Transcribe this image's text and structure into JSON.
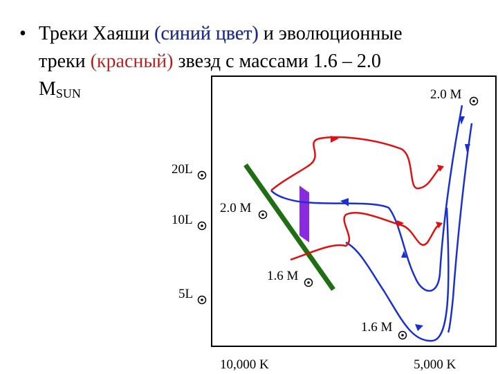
{
  "bullet": {
    "symbol": "•",
    "line1": [
      "Треки Хаяши ",
      "(синий цвет)",
      " и эволюционные"
    ],
    "line2": [
      "треки ",
      "(красный)",
      " звезд с массами 1.6 – 2.0"
    ],
    "line3": [
      "M",
      "SUN"
    ]
  },
  "diagram": {
    "mass_labels": [
      "2.0 M",
      "2.0 M",
      "1.6 M",
      "1.6 M"
    ],
    "luminosity_labels": [
      "20L",
      "10L",
      "5L"
    ],
    "temperature_labels": [
      "10,000 K",
      "5,000 K"
    ]
  }
}
